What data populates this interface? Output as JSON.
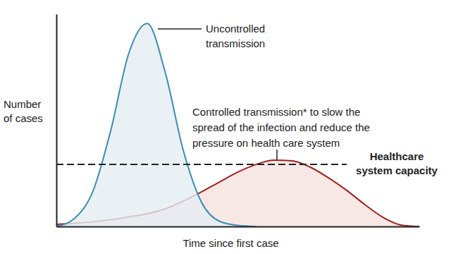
{
  "chart_data": {
    "type": "area",
    "x_label": "Time since first case",
    "y_label": [
      "Number",
      "of cases"
    ],
    "x": [
      0,
      5,
      10,
      15,
      20,
      25,
      30,
      35,
      40,
      45,
      50,
      55,
      60,
      65,
      70,
      75,
      80,
      85,
      90,
      95,
      100
    ],
    "series": [
      {
        "color": "#3b8db3",
        "values": [
          0,
          3.8,
          16.3,
          45.3,
          81.8,
          95.6,
          72.5,
          35.6,
          11.4,
          2.4,
          0.5,
          0,
          null,
          null,
          null,
          null,
          null,
          null,
          null,
          null,
          null
        ]
      },
      {
        "color": "#a3211c",
        "values": [
          1,
          1.5,
          2.2,
          3.2,
          4.5,
          6,
          8.3,
          12,
          16.3,
          21,
          25.6,
          29.2,
          31.2,
          30.9,
          27.9,
          22.9,
          17,
          10.3,
          4.3,
          0.7,
          0
        ]
      }
    ],
    "xlim": [
      0,
      100
    ],
    "ylim": [
      0,
      100
    ],
    "tick_labels": false,
    "grid": false,
    "capacity": {
      "value": 29.2,
      "label": [
        "Healthcare",
        "system capacity"
      ],
      "line_style": "dashed"
    },
    "annotations": [
      {
        "lines": [
          "Uncontrolled",
          "transmission"
        ]
      },
      {
        "lines": [
          "Controlled transmission* to slow the",
          "spread of the infection and reduce the",
          "pressure on health care system"
        ]
      }
    ]
  }
}
